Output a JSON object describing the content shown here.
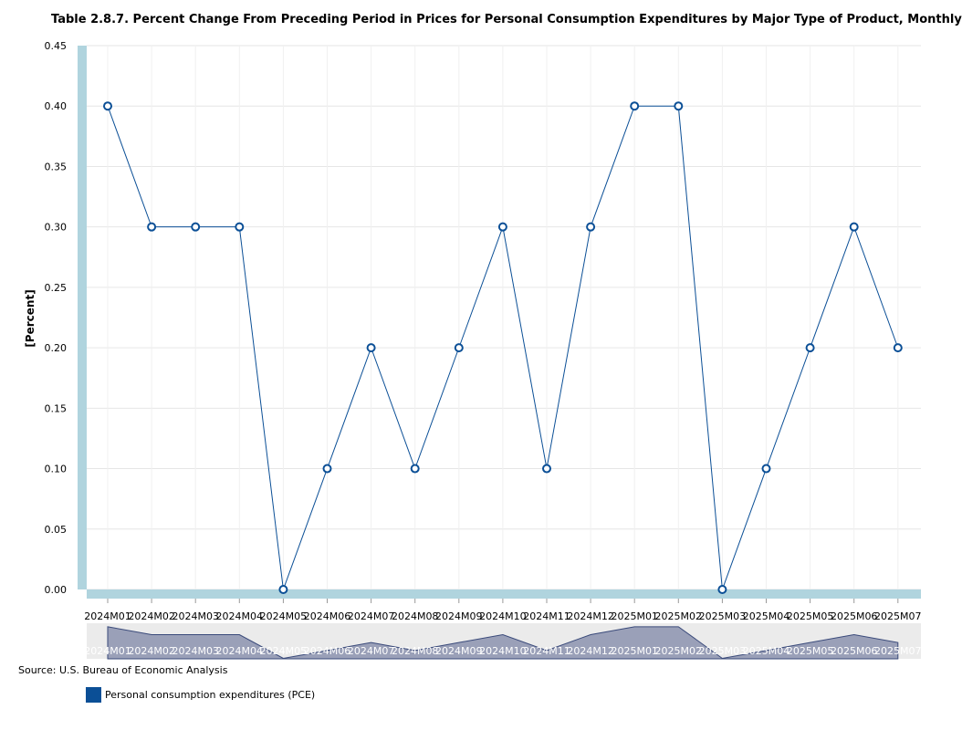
{
  "chart_data": {
    "type": "line",
    "title": "Table 2.8.7. Percent Change From Preceding Period in Prices for Personal Consumption Expenditures by Major Type of Product, Monthly",
    "ylabel": "[Percent]",
    "xlabel": "",
    "ylim": [
      0,
      0.45
    ],
    "y_ticks": [
      "0.00",
      "0.05",
      "0.10",
      "0.15",
      "0.20",
      "0.25",
      "0.30",
      "0.35",
      "0.40",
      "0.45"
    ],
    "categories": [
      "2024M01",
      "2024M02",
      "2024M03",
      "2024M04",
      "2024M05",
      "2024M06",
      "2024M07",
      "2024M08",
      "2024M09",
      "2024M10",
      "2024M11",
      "2024M12",
      "2025M01",
      "2025M02",
      "2025M03",
      "2025M04",
      "2025M05",
      "2025M06",
      "2025M07"
    ],
    "series": [
      {
        "name": "Personal consumption expenditures (PCE)",
        "values": [
          0.4,
          0.3,
          0.3,
          0.3,
          0.0,
          0.1,
          0.2,
          0.1,
          0.2,
          0.3,
          0.1,
          0.3,
          0.4,
          0.4,
          0.0,
          0.1,
          0.2,
          0.3,
          0.2
        ]
      }
    ],
    "grid": true,
    "legend_position": "bottom-left"
  },
  "source": "Source: U.S. Bureau of Economic Analysis",
  "legend": {
    "label": "Personal consumption expenditures (PCE)",
    "color": "#0b4f96"
  },
  "colors": {
    "line": "#0b4f96",
    "axis_bar": "#b0d4de",
    "navigator_fill": "#9aa0b8",
    "navigator_bg": "#ebebeb",
    "grid": "#e6e6e6"
  }
}
